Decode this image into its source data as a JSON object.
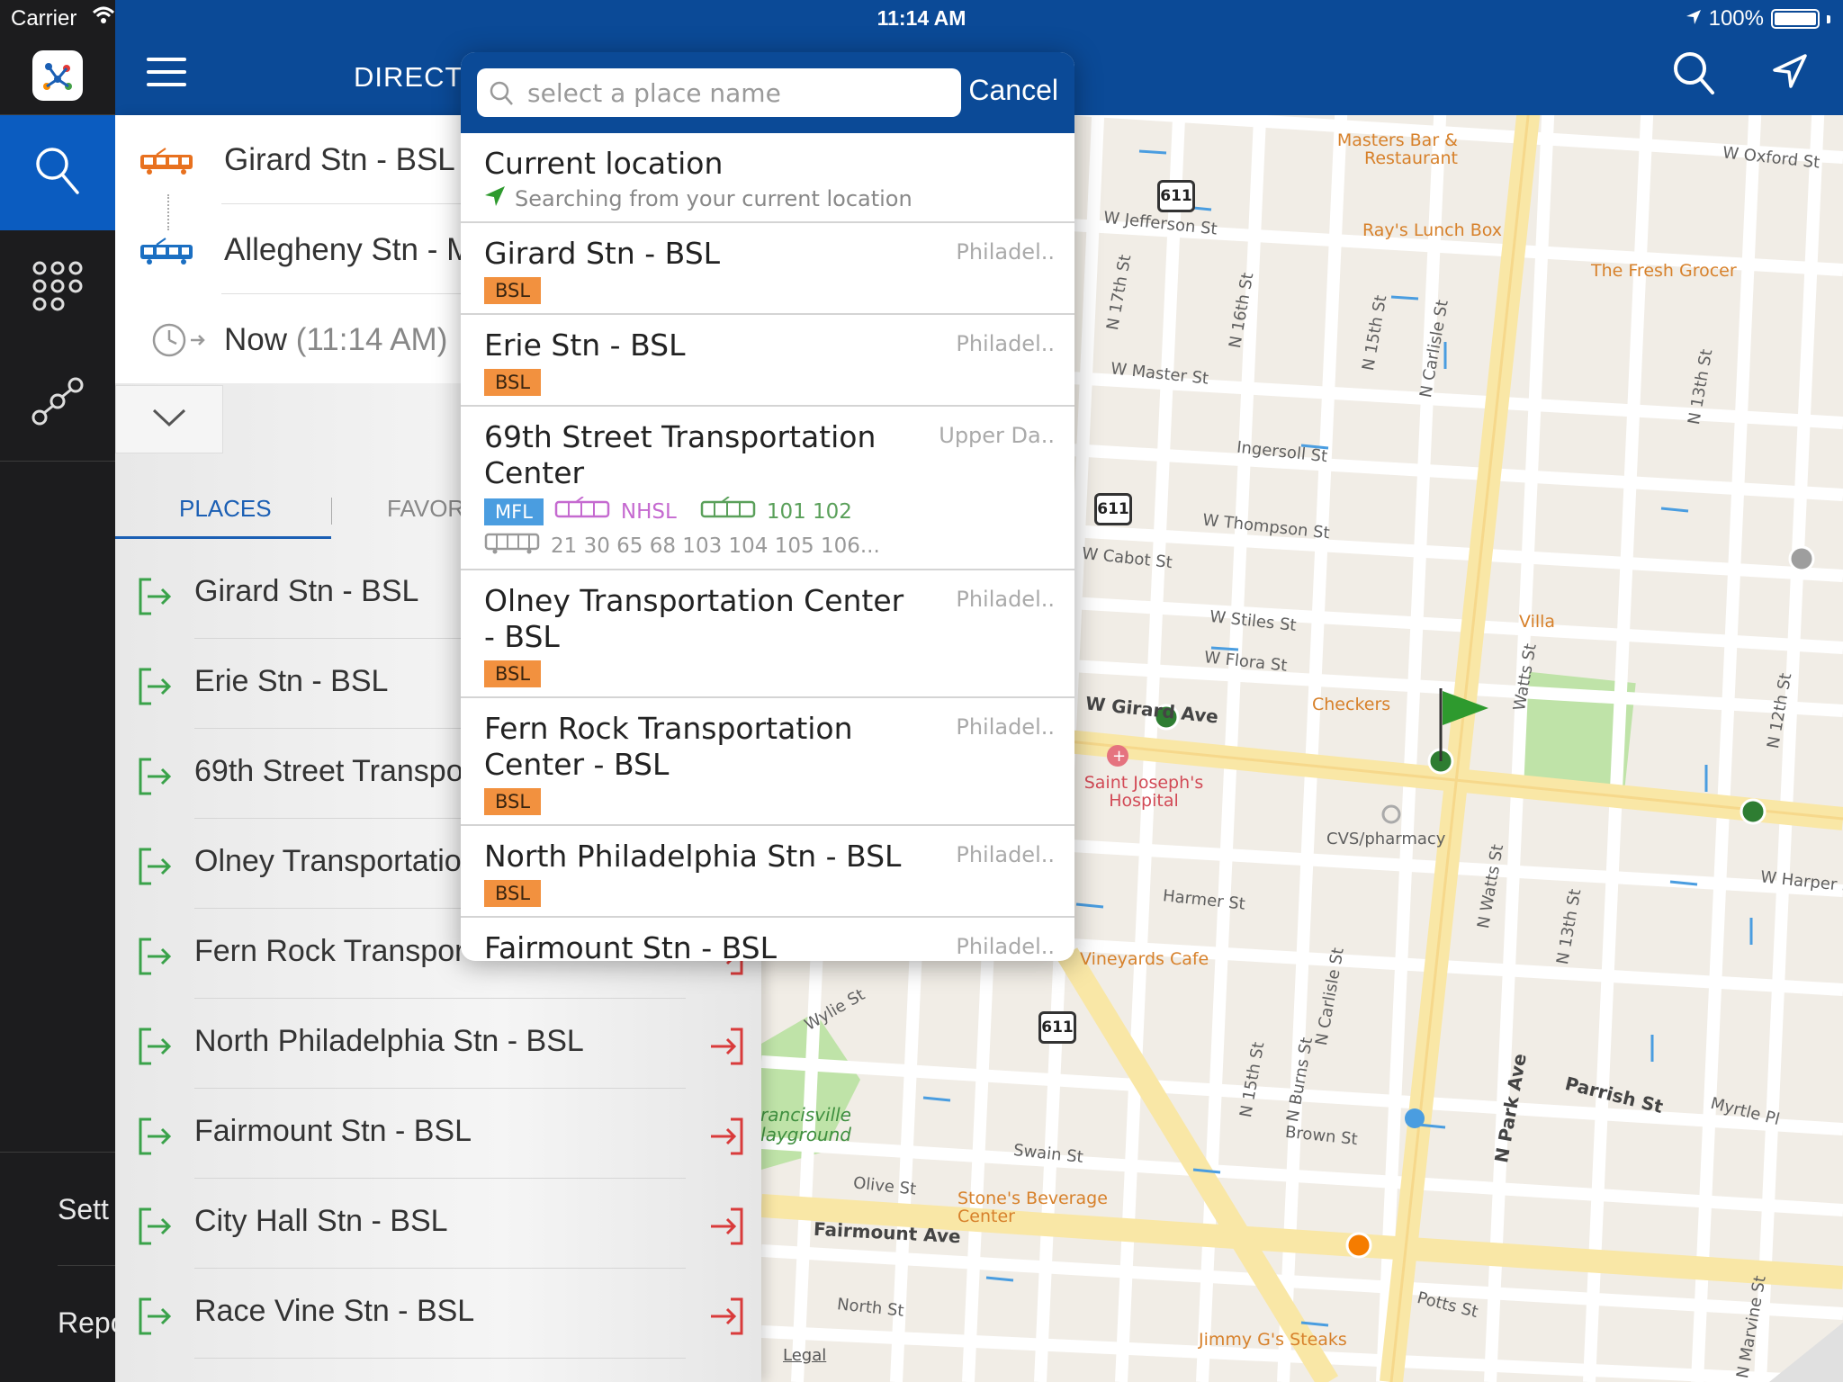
{
  "status_bar": {
    "carrier": "Carrier",
    "time": "11:14 AM",
    "battery": "100%"
  },
  "header": {
    "title": "DIRECTI"
  },
  "route": {
    "origin": "Girard Stn - BSL",
    "destination": "Allegheny Stn - M",
    "time_label": "Now",
    "time_value": "(11:14 AM)"
  },
  "tabs": {
    "places": "PLACES",
    "favorites": "FAVORI"
  },
  "rail": {
    "settings": "Sett",
    "report": "Repo"
  },
  "places": [
    "Girard Stn - BSL",
    "Erie Stn - BSL",
    "69th Street Transpo",
    "Olney Transportatio",
    "Fern Rock Transpor",
    "North Philadelphia Stn - BSL",
    "Fairmount Stn - BSL",
    "City Hall Stn - BSL",
    "Race Vine Stn - BSL"
  ],
  "search": {
    "placeholder": "select a place name",
    "value": "",
    "cancel_label": "Cancel",
    "current_location": {
      "title": "Current location",
      "subtitle": "Searching from your current location"
    },
    "results": [
      {
        "name": "Girard Stn - BSL",
        "city": "Philadel..",
        "badge": "BSL"
      },
      {
        "name": "Erie Stn - BSL",
        "city": "Philadel..",
        "badge": "BSL"
      },
      {
        "name": "69th Street Transportation Center",
        "city": "Upper Da..",
        "mfl": "MFL",
        "nhsl": "NHSL",
        "trolley_routes": "101  102",
        "bus_routes": "21  30  65  68  103  104  105  106..."
      },
      {
        "name": "Olney Transportation Center - BSL",
        "city": "Philadel..",
        "badge": "BSL"
      },
      {
        "name": "Fern Rock Transportation Center - BSL",
        "city": "Philadel..",
        "badge": "BSL"
      },
      {
        "name": "North Philadelphia Stn - BSL",
        "city": "Philadel..",
        "badge": "BSL"
      },
      {
        "name": "Fairmount Stn - BSL",
        "city": "Philadel.."
      }
    ]
  },
  "map": {
    "streets": [
      "W Oxford St",
      "W Jefferson St",
      "W Master St",
      "Ingersoll St",
      "W Thompson St",
      "W Cabot St",
      "W Stiles St",
      "W Flora St",
      "W Girard Ave",
      "Harmer St",
      "W Harper St",
      "Parrish St",
      "Myrtle Pl",
      "Brown St",
      "Swain St",
      "Olive St",
      "Fairmount Ave",
      "North St",
      "Potts St",
      "Wylie St",
      "N Park Ave",
      "N 17th St",
      "N 16th St",
      "N 15th St",
      "N Carlisle St",
      "N 13th St",
      "N 12th St",
      "Watts St",
      "N Watts St",
      "N 13th St",
      "N Carlisle St",
      "N 15th St",
      "N Burns St",
      "N Marvine St"
    ],
    "pois": [
      "Masters Bar & Restaurant",
      "Ray's Lunch Box",
      "The Fresh Grocer",
      "Villa",
      "Checkers",
      "Saint Joseph's Hospital",
      "CVS/pharmacy",
      "Vineyards Cafe",
      "Stone's Beverage Center",
      "Jimmy G's Steaks",
      "Francisville Playground"
    ],
    "route_shield": "611",
    "legal": "Legal",
    "colors": {
      "route": "#0b4a97",
      "bsl": "#f2913f",
      "mfl": "#4a9de0",
      "nhsl": "#c56ad0",
      "trolley": "#5aa05a"
    }
  }
}
